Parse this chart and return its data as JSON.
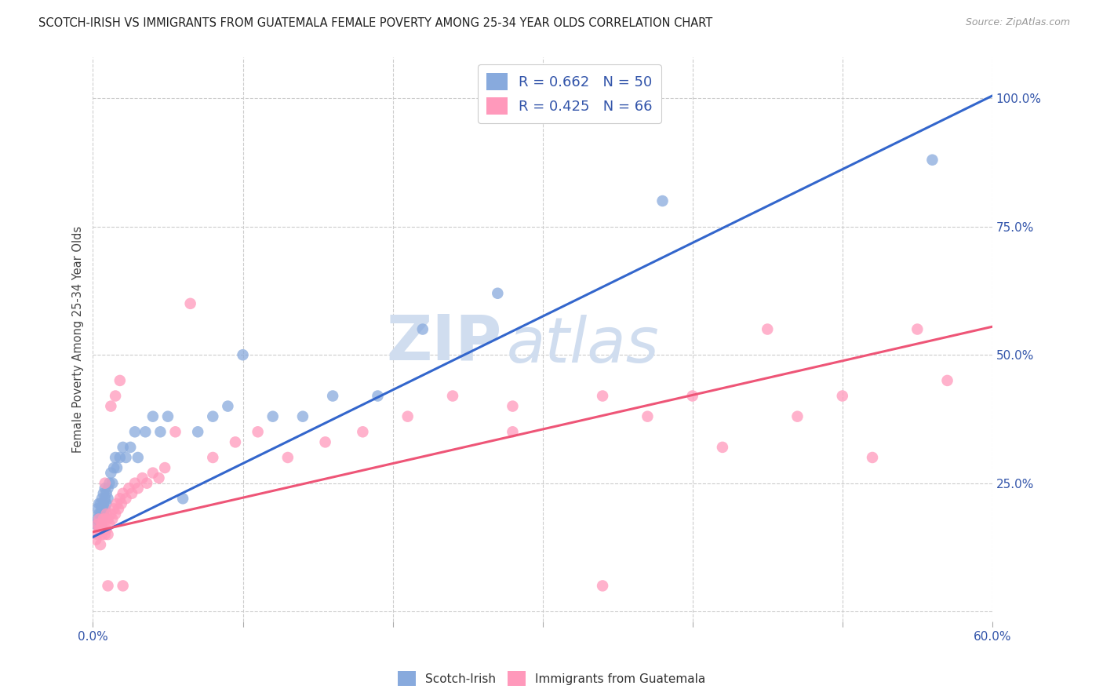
{
  "title": "SCOTCH-IRISH VS IMMIGRANTS FROM GUATEMALA FEMALE POVERTY AMONG 25-34 YEAR OLDS CORRELATION CHART",
  "source": "Source: ZipAtlas.com",
  "ylabel": "Female Poverty Among 25-34 Year Olds",
  "xlim": [
    0.0,
    0.6
  ],
  "ylim": [
    -0.02,
    1.08
  ],
  "blue_color": "#88AADD",
  "pink_color": "#FF99BB",
  "blue_line_color": "#3366CC",
  "pink_line_color": "#EE5577",
  "watermark_zip": "ZIP",
  "watermark_atlas": "atlas",
  "watermark_color": "#D0DDEF",
  "background_color": "#FFFFFF",
  "grid_color": "#CCCCCC",
  "legend_label_scotch": "Scotch-Irish",
  "legend_label_guate": "Immigrants from Guatemala",
  "legend_blue_label": "R = 0.662   N = 50",
  "legend_pink_label": "R = 0.425   N = 66",
  "blue_line_x0": 0.0,
  "blue_line_y0": 0.145,
  "blue_line_x1": 0.6,
  "blue_line_y1": 1.005,
  "pink_line_x0": 0.0,
  "pink_line_y0": 0.155,
  "pink_line_x1": 0.6,
  "pink_line_y1": 0.555,
  "scotch_irish_x": [
    0.002,
    0.003,
    0.003,
    0.004,
    0.004,
    0.005,
    0.005,
    0.005,
    0.006,
    0.006,
    0.006,
    0.007,
    0.007,
    0.007,
    0.008,
    0.008,
    0.008,
    0.009,
    0.009,
    0.01,
    0.01,
    0.011,
    0.012,
    0.013,
    0.014,
    0.015,
    0.016,
    0.018,
    0.02,
    0.022,
    0.025,
    0.028,
    0.03,
    0.035,
    0.04,
    0.045,
    0.05,
    0.06,
    0.07,
    0.08,
    0.09,
    0.1,
    0.12,
    0.14,
    0.16,
    0.19,
    0.22,
    0.27,
    0.38,
    0.56
  ],
  "scotch_irish_y": [
    0.17,
    0.18,
    0.2,
    0.19,
    0.21,
    0.17,
    0.19,
    0.21,
    0.18,
    0.2,
    0.22,
    0.19,
    0.21,
    0.23,
    0.2,
    0.22,
    0.24,
    0.21,
    0.23,
    0.22,
    0.24,
    0.25,
    0.27,
    0.25,
    0.28,
    0.3,
    0.28,
    0.3,
    0.32,
    0.3,
    0.32,
    0.35,
    0.3,
    0.35,
    0.38,
    0.35,
    0.38,
    0.22,
    0.35,
    0.38,
    0.4,
    0.5,
    0.38,
    0.38,
    0.42,
    0.42,
    0.55,
    0.62,
    0.8,
    0.88
  ],
  "guatemala_x": [
    0.002,
    0.003,
    0.003,
    0.004,
    0.004,
    0.005,
    0.005,
    0.006,
    0.006,
    0.007,
    0.007,
    0.008,
    0.008,
    0.009,
    0.009,
    0.01,
    0.01,
    0.011,
    0.012,
    0.013,
    0.014,
    0.015,
    0.016,
    0.017,
    0.018,
    0.019,
    0.02,
    0.022,
    0.024,
    0.026,
    0.028,
    0.03,
    0.033,
    0.036,
    0.04,
    0.044,
    0.048,
    0.055,
    0.065,
    0.08,
    0.095,
    0.11,
    0.13,
    0.155,
    0.18,
    0.21,
    0.24,
    0.28,
    0.34,
    0.37,
    0.4,
    0.42,
    0.45,
    0.47,
    0.5,
    0.52,
    0.55,
    0.57,
    0.01,
    0.02,
    0.28,
    0.34,
    0.012,
    0.008,
    0.015,
    0.018
  ],
  "guatemala_y": [
    0.14,
    0.15,
    0.17,
    0.16,
    0.18,
    0.13,
    0.16,
    0.15,
    0.17,
    0.16,
    0.18,
    0.15,
    0.18,
    0.16,
    0.19,
    0.15,
    0.18,
    0.17,
    0.19,
    0.18,
    0.2,
    0.19,
    0.21,
    0.2,
    0.22,
    0.21,
    0.23,
    0.22,
    0.24,
    0.23,
    0.25,
    0.24,
    0.26,
    0.25,
    0.27,
    0.26,
    0.28,
    0.35,
    0.6,
    0.3,
    0.33,
    0.35,
    0.3,
    0.33,
    0.35,
    0.38,
    0.42,
    0.4,
    0.42,
    0.38,
    0.42,
    0.32,
    0.55,
    0.38,
    0.42,
    0.3,
    0.55,
    0.45,
    0.05,
    0.05,
    0.35,
    0.05,
    0.4,
    0.25,
    0.42,
    0.45
  ]
}
